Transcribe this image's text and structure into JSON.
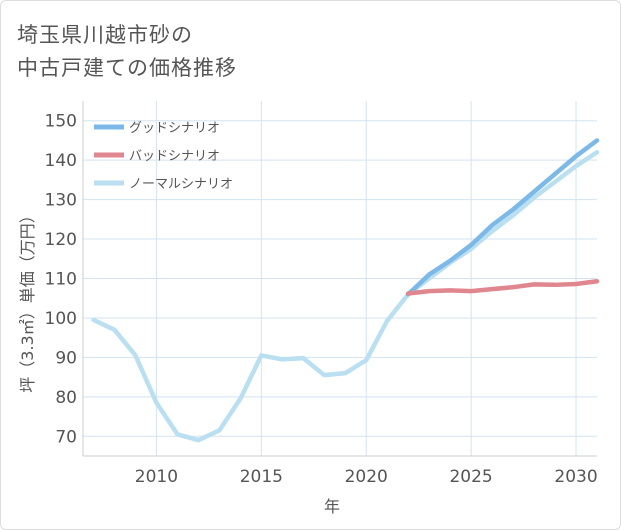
{
  "title_lines": [
    "埼玉県川越市砂の",
    "中古戸建ての価格推移"
  ],
  "chart_data": {
    "type": "line",
    "title": "埼玉県川越市砂の中古戸建ての価格推移",
    "xlabel": "年",
    "ylabel": "坪（3.3㎡）単価（万円）",
    "xlim": [
      2006.5,
      2031
    ],
    "ylim": [
      65,
      155
    ],
    "x_ticks": [
      2010,
      2015,
      2020,
      2025,
      2030
    ],
    "y_ticks": [
      70,
      80,
      90,
      100,
      110,
      120,
      130,
      140,
      150
    ],
    "legend_position": "top-left",
    "series": [
      {
        "name": "グッドシナリオ",
        "color": "#7cb9e8",
        "x": [
          2022,
          2023,
          2024,
          2025,
          2026,
          2027,
          2028,
          2029,
          2030,
          2031
        ],
        "values": [
          106,
          111,
          114.5,
          118.5,
          123.5,
          127.5,
          132,
          136.5,
          141,
          145
        ]
      },
      {
        "name": "バッドシナリオ",
        "color": "#e0868f",
        "x": [
          2022,
          2023,
          2024,
          2025,
          2026,
          2027,
          2028,
          2029,
          2030,
          2031
        ],
        "values": [
          106.2,
          106.8,
          107,
          106.8,
          107.3,
          107.8,
          108.5,
          108.4,
          108.6,
          109.3
        ]
      },
      {
        "name": "ノーマルシナリオ",
        "color": "#b9dff0",
        "x": [
          2007,
          2008,
          2009,
          2010,
          2011,
          2012,
          2013,
          2014,
          2015,
          2016,
          2017,
          2018,
          2019,
          2020,
          2021,
          2022,
          2023,
          2024,
          2025,
          2026,
          2027,
          2028,
          2029,
          2030,
          2031
        ],
        "values": [
          99.5,
          97,
          90.5,
          78.5,
          70.5,
          69,
          71.5,
          79.5,
          90.5,
          89.5,
          89.8,
          85.5,
          86,
          89.3,
          99.3,
          106,
          110,
          114,
          117.5,
          122,
          126,
          130.5,
          134.5,
          138.5,
          142
        ]
      }
    ]
  }
}
